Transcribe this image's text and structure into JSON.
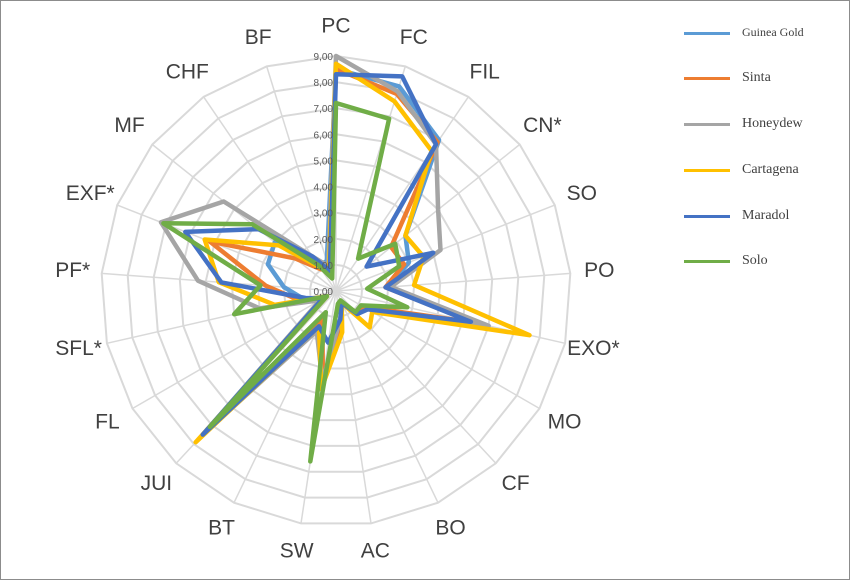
{
  "chart_data": {
    "type": "radar",
    "title": "",
    "axes": [
      "PC",
      "FC",
      "FIL",
      "CN*",
      "SO",
      "PO",
      "EXO*",
      "MO",
      "CF",
      "BO",
      "AC",
      "SW",
      "BT",
      "JUI",
      "FL",
      "SFL*",
      "PF*",
      "EXF*",
      "MF",
      "CHF",
      "BF"
    ],
    "rlim": [
      0,
      9
    ],
    "ticks": [
      "0,00",
      "1,00",
      "2,00",
      "3,00",
      "4,00",
      "5,00",
      "6,00",
      "7,00",
      "8,00",
      "9,00"
    ],
    "grid": true,
    "legend_position": "right",
    "series": [
      {
        "name": "Guinea Gold",
        "color": "#5b9bd5",
        "values": [
          8.5,
          8.2,
          7.0,
          3.4,
          3.0,
          2.0,
          5.8,
          1.3,
          1.2,
          0.5,
          1.4,
          3.4,
          1.3,
          7.3,
          0.6,
          1.3,
          2.0,
          2.8,
          3.0,
          1.2,
          1.2
        ]
      },
      {
        "name": "Sinta",
        "color": "#ed7d31",
        "values": [
          8.5,
          7.9,
          6.9,
          2.7,
          2.8,
          1.9,
          5.4,
          1.2,
          1.1,
          0.5,
          1.3,
          3.4,
          1.2,
          7.3,
          0.6,
          1.5,
          2.7,
          5.2,
          2.0,
          1.0,
          0.9
        ]
      },
      {
        "name": "Honeydew",
        "color": "#a5a5a5",
        "values": [
          9.0,
          8.0,
          6.8,
          5.0,
          4.3,
          2.1,
          6.0,
          1.4,
          1.2,
          0.5,
          1.1,
          3.5,
          1.7,
          7.5,
          0.7,
          3.0,
          5.3,
          7.2,
          5.5,
          1.6,
          1.0
        ]
      },
      {
        "name": "Cartagena",
        "color": "#ffc000",
        "values": [
          8.7,
          7.6,
          6.5,
          3.4,
          3.6,
          3.0,
          7.6,
          1.6,
          1.9,
          0.5,
          1.6,
          3.8,
          1.5,
          7.9,
          0.4,
          2.4,
          4.5,
          5.4,
          2.8,
          1.1,
          0.9
        ]
      },
      {
        "name": "Maradol",
        "color": "#4472c4",
        "values": [
          8.3,
          8.6,
          6.8,
          1.5,
          4.0,
          1.9,
          5.3,
          1.4,
          1.2,
          0.5,
          1.1,
          2.0,
          1.5,
          7.5,
          0.6,
          1.2,
          4.4,
          6.2,
          3.8,
          1.6,
          0.8
        ]
      },
      {
        "name": "Solo",
        "color": "#70ad47",
        "values": [
          7.2,
          6.9,
          1.5,
          2.9,
          2.6,
          1.2,
          2.8,
          1.1,
          1.1,
          0.4,
          0.5,
          6.6,
          0.9,
          7.1,
          0.4,
          4.0,
          2.9,
          7.1,
          4.1,
          1.2,
          0.5
        ]
      }
    ]
  }
}
